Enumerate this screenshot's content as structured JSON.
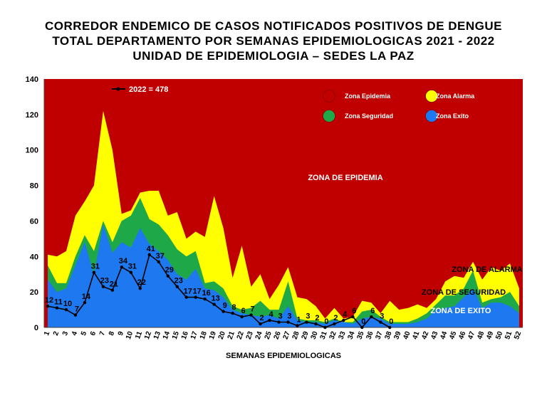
{
  "chart_data": {
    "type": "area",
    "title": [
      "CORREDOR ENDEMICO DE CASOS NOTIFICADOS POSITIVOS DE DENGUE",
      "TOTAL DEPARTAMENTO  POR SEMANAS EPIDEMIOLOGICAS 2021 - 2022",
      "UNIDAD DE EPIDEMIOLOGIA – SEDES LA PAZ"
    ],
    "xlabel": "SEMANAS EPIDEMIOLOGICAS",
    "ylabel": "",
    "ylim": [
      0,
      140
    ],
    "yticks": [
      0,
      20,
      40,
      60,
      80,
      100,
      120,
      140
    ],
    "x": [
      1,
      2,
      3,
      4,
      5,
      6,
      7,
      8,
      9,
      10,
      11,
      12,
      13,
      14,
      15,
      16,
      17,
      18,
      19,
      20,
      21,
      22,
      23,
      24,
      25,
      26,
      27,
      28,
      29,
      30,
      31,
      32,
      33,
      34,
      35,
      36,
      37,
      38,
      39,
      40,
      41,
      42,
      43,
      44,
      45,
      46,
      47,
      48,
      49,
      50,
      51,
      52
    ],
    "series": [
      {
        "name": "Zona Exito",
        "color": "#1e78f0",
        "values": [
          27,
          20,
          22,
          35,
          48,
          30,
          58,
          42,
          48,
          45,
          56,
          47,
          43,
          38,
          30,
          27,
          33,
          22,
          21,
          17,
          10,
          8,
          7,
          6,
          7,
          5,
          12,
          4,
          3,
          3,
          2,
          4,
          3,
          2,
          5,
          6,
          5,
          2,
          2,
          2,
          3,
          5,
          10,
          11,
          12,
          17,
          22,
          11,
          14,
          14,
          12,
          8
        ]
      },
      {
        "name": "Zona Seguridad",
        "color": "#1fa848",
        "values": [
          35,
          25,
          25,
          40,
          52,
          43,
          60,
          48,
          60,
          63,
          73,
          61,
          58,
          52,
          44,
          40,
          43,
          25,
          26,
          22,
          12,
          10,
          11,
          15,
          10,
          10,
          26,
          5,
          4,
          4,
          3,
          5,
          3,
          3,
          9,
          10,
          6,
          3,
          3,
          3,
          5,
          8,
          13,
          18,
          18,
          22,
          32,
          14,
          16,
          17,
          20,
          12
        ]
      },
      {
        "name": "Zona Alarma",
        "color": "#ffff00",
        "values": [
          41,
          40,
          43,
          63,
          71,
          80,
          122,
          100,
          64,
          66,
          76,
          77,
          77,
          63,
          65,
          50,
          54,
          51,
          74,
          56,
          28,
          46,
          23,
          30,
          16,
          24,
          34,
          17,
          16,
          12,
          5,
          11,
          5,
          6,
          15,
          14,
          8,
          15,
          10,
          11,
          13,
          11,
          16,
          26,
          29,
          28,
          37,
          27,
          34,
          32,
          36,
          22
        ]
      }
    ],
    "line": {
      "name": "2022 = 478",
      "color": "#000000",
      "values": [
        12,
        11,
        10,
        7,
        14,
        31,
        23,
        21,
        34,
        31,
        22,
        41,
        37,
        29,
        23,
        17,
        17,
        16,
        13,
        9,
        8,
        6,
        7,
        2,
        4,
        3,
        3,
        1,
        3,
        2,
        0,
        2,
        4,
        6,
        0,
        6,
        3,
        0,
        null,
        null,
        null,
        null,
        null,
        null,
        null,
        null,
        null,
        null,
        null,
        null,
        null,
        null
      ]
    },
    "background_zone": {
      "name": "ZONA DE EPIDEMIA",
      "color": "#c00000"
    },
    "legend": {
      "placement": "top-right",
      "items": [
        {
          "label": "Zona Epidemia",
          "color": "#c00000"
        },
        {
          "label": "Zona Alarma",
          "color": "#ffff00"
        },
        {
          "label": "Zona Seguridad",
          "color": "#1fa848"
        },
        {
          "label": "Zona Exito",
          "color": "#1e78f0"
        }
      ]
    },
    "annotations": {
      "epidemia": "ZONA DE EPIDEMIA",
      "alarma": "ZONA DE ALARMA",
      "seguridad": "ZONA DE  SEGURIDAD",
      "exito": "ZONA DE  EXITO"
    },
    "grid": false
  }
}
